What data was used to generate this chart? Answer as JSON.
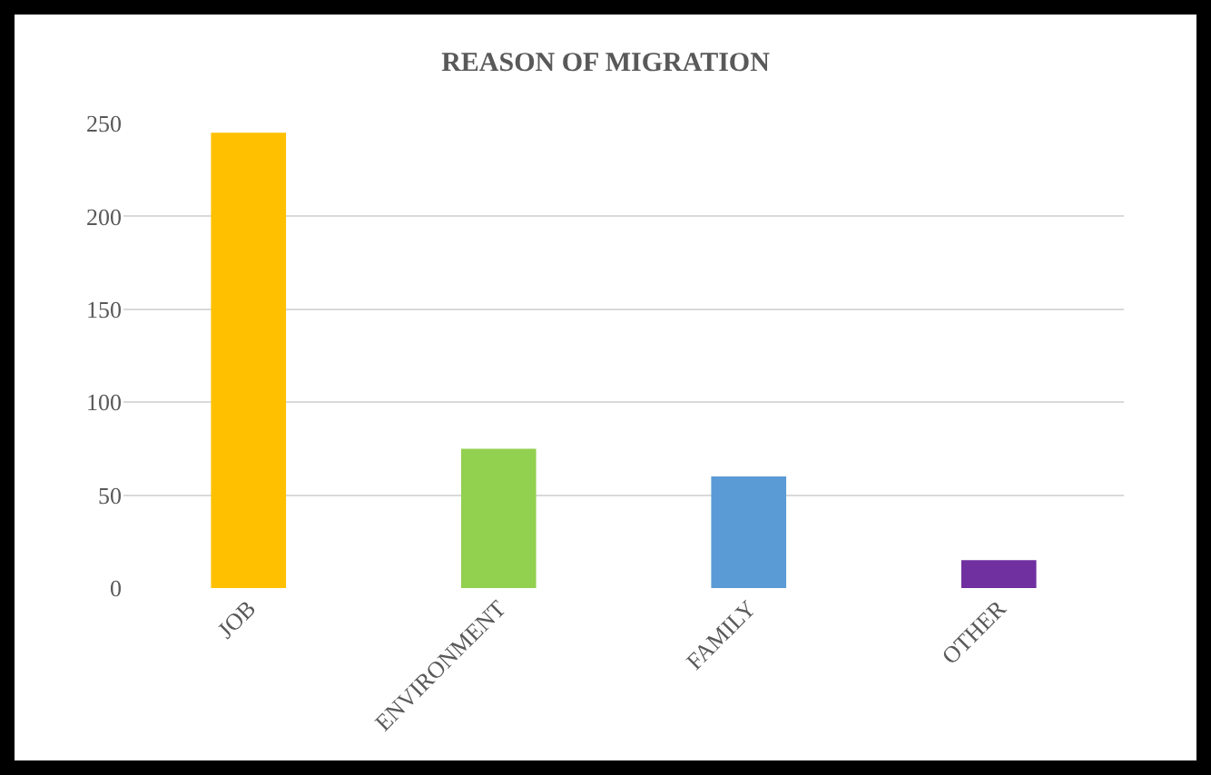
{
  "chart_data": {
    "type": "bar",
    "title": "REASON OF MIGRATION",
    "categories": [
      "JOB",
      "ENVIRONMENT",
      "FAMILY",
      "OTHER"
    ],
    "values": [
      245,
      75,
      60,
      15
    ],
    "colors": [
      "#ffc000",
      "#92d050",
      "#5b9bd5",
      "#7030a0"
    ],
    "ylim": [
      0,
      250
    ],
    "yticks": [
      0,
      50,
      100,
      150,
      200,
      250
    ],
    "grid": "y"
  }
}
